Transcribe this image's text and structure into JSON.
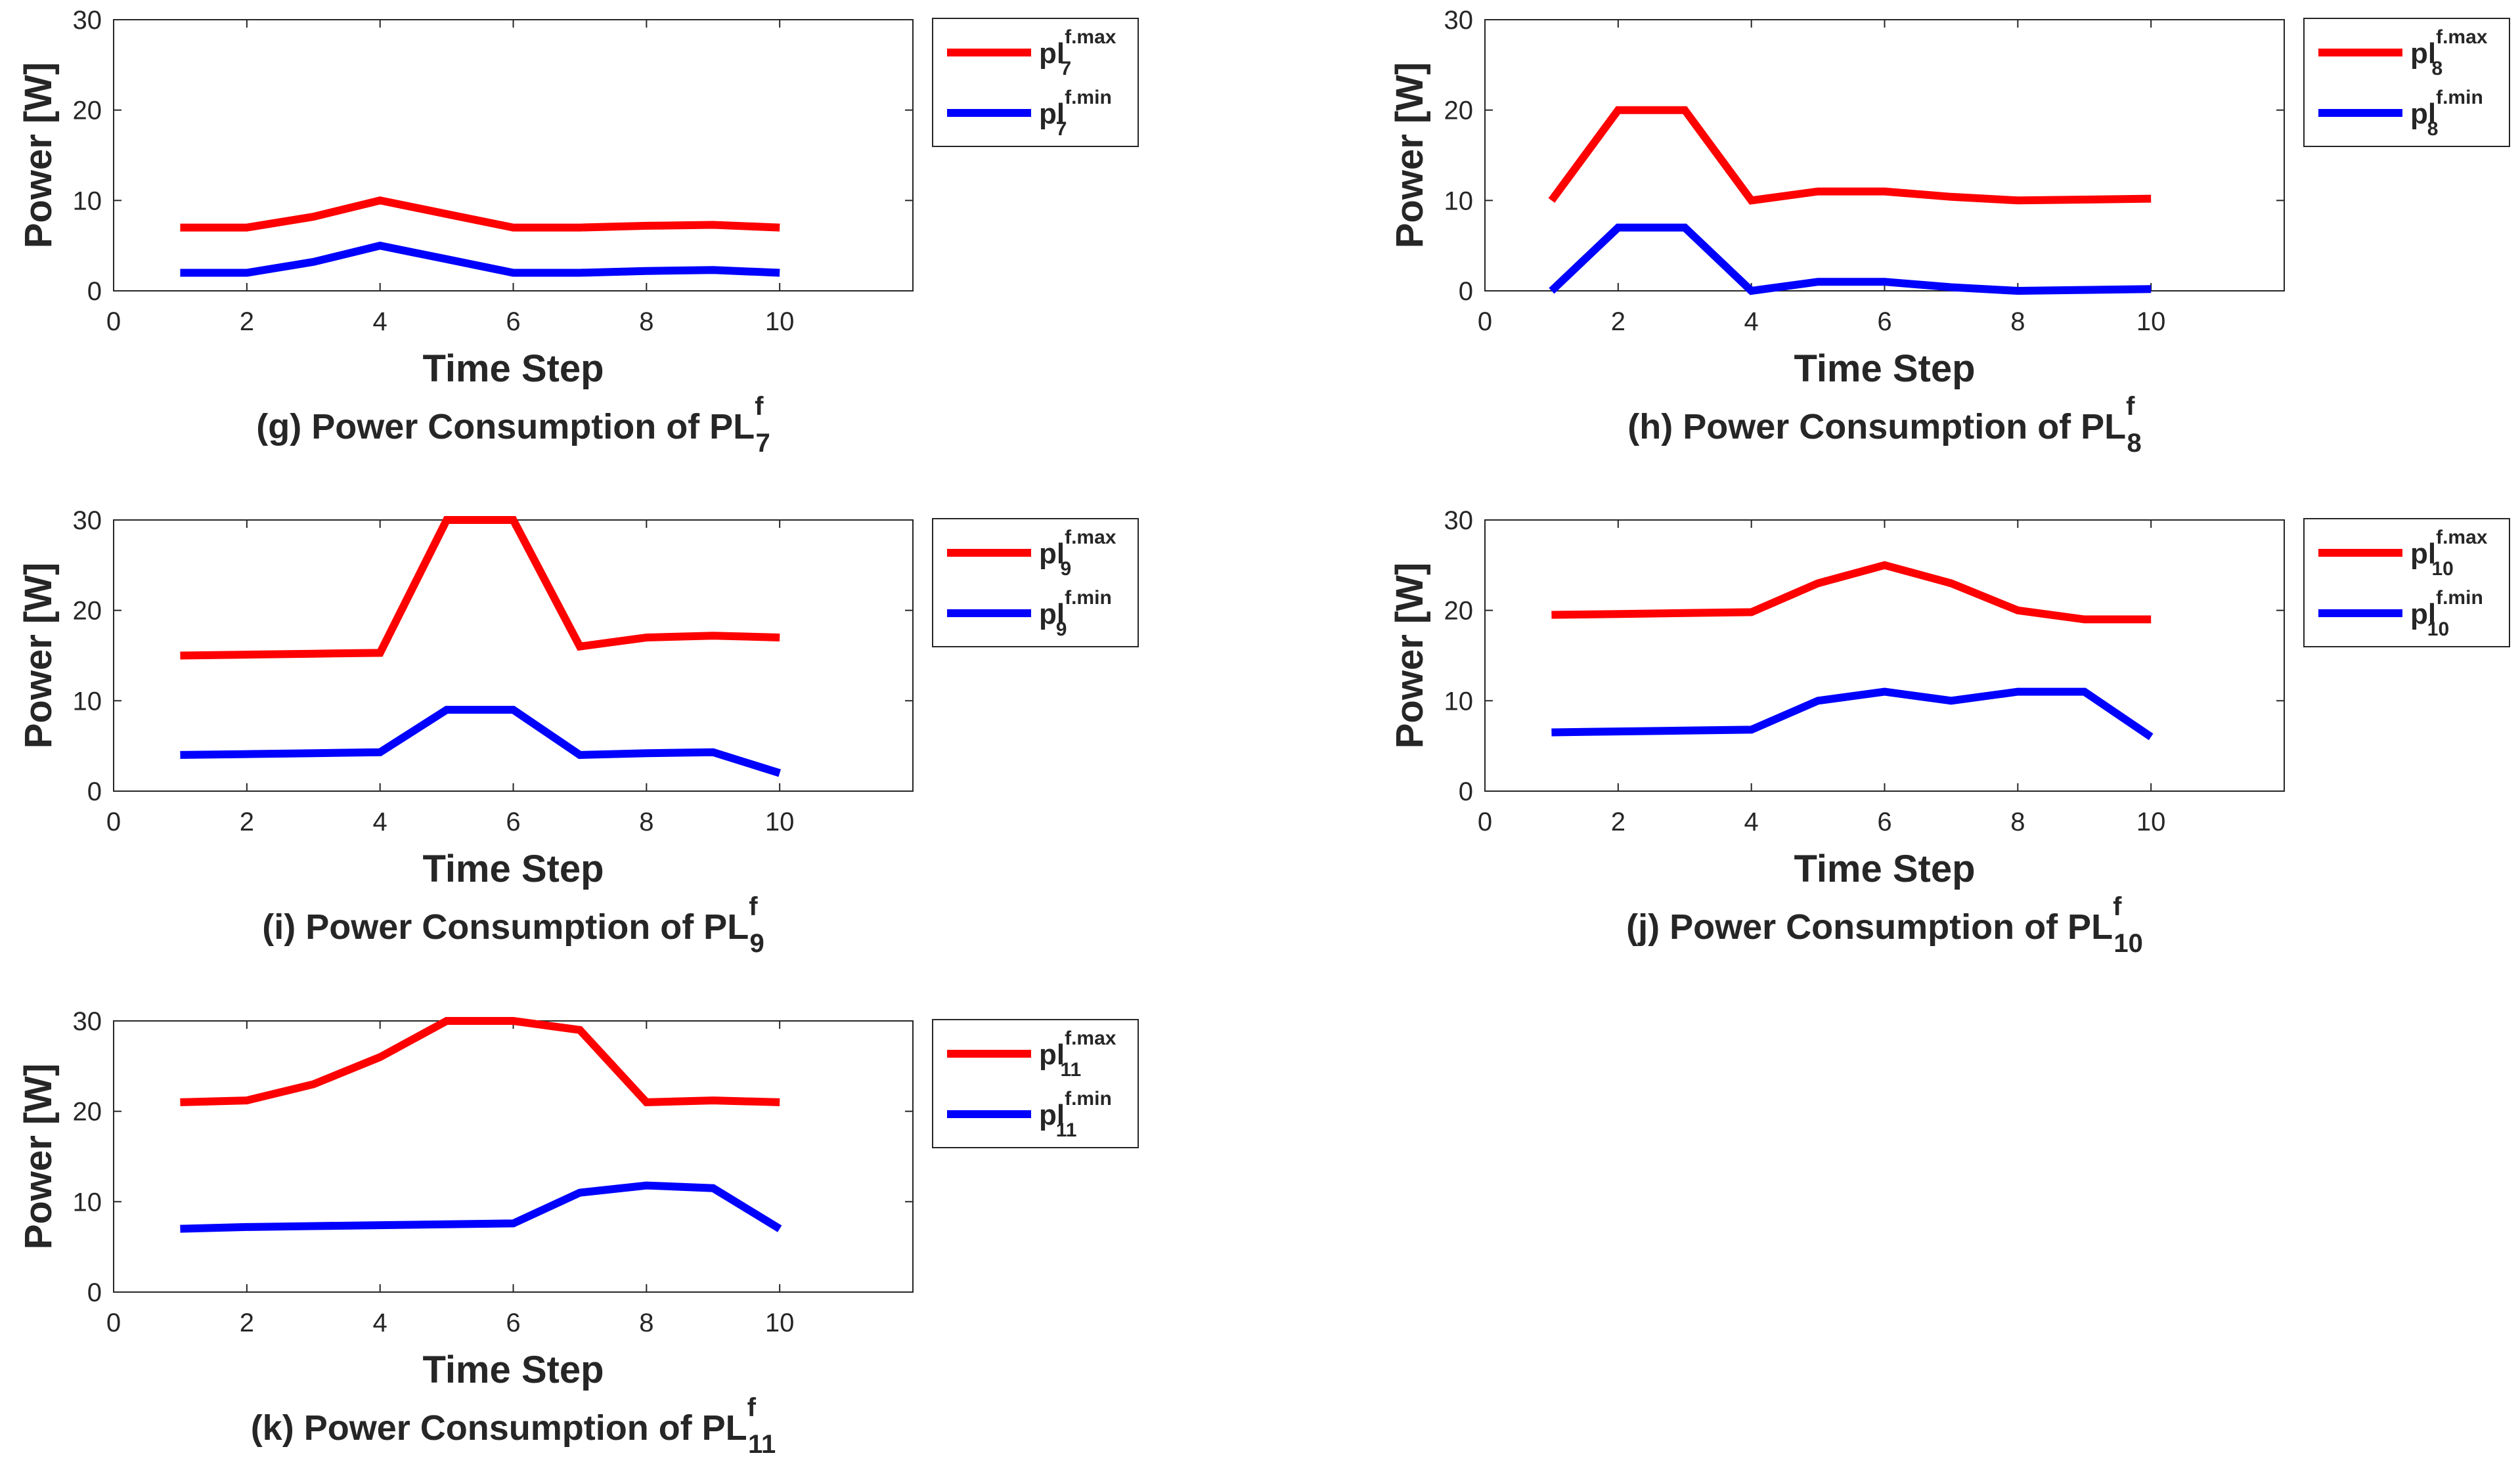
{
  "chart_data": [
    {
      "type": "line",
      "panel": "g",
      "caption": {
        "prefix": "(g) Power Consumption of PL",
        "sup": "f",
        "sub": "7"
      },
      "xlabel": "Time Step",
      "ylabel": "Power [W]",
      "xlim": [
        0,
        12
      ],
      "ylim": [
        0,
        30
      ],
      "xticks": [
        0,
        2,
        4,
        6,
        8,
        10
      ],
      "yticks": [
        0,
        10,
        20,
        30
      ],
      "x": [
        1,
        2,
        3,
        4,
        5,
        6,
        7,
        8,
        9,
        10
      ],
      "series": [
        {
          "name": "pl^{f.max}_7",
          "base": "pl",
          "sup": "f.max",
          "sub": "7",
          "color": "#ff0000",
          "values": [
            7,
            7,
            8.2,
            10,
            8.5,
            7,
            7,
            7.2,
            7.3,
            7
          ]
        },
        {
          "name": "pl^{f.min}_7",
          "base": "pl",
          "sup": "f.min",
          "sub": "7",
          "color": "#0000ff",
          "values": [
            2,
            2,
            3.2,
            5,
            3.5,
            2,
            2,
            2.2,
            2.3,
            2
          ]
        }
      ],
      "legend": "outside-right-top"
    },
    {
      "type": "line",
      "panel": "h",
      "caption": {
        "prefix": "(h) Power Consumption of PL",
        "sup": "f",
        "sub": "8"
      },
      "xlabel": "Time Step",
      "ylabel": "Power [W]",
      "xlim": [
        0,
        12
      ],
      "ylim": [
        0,
        30
      ],
      "xticks": [
        0,
        2,
        4,
        6,
        8,
        10
      ],
      "yticks": [
        0,
        10,
        20,
        30
      ],
      "x": [
        1,
        2,
        3,
        4,
        5,
        6,
        7,
        8,
        9,
        10
      ],
      "series": [
        {
          "name": "pl^{f.max}_8",
          "base": "pl",
          "sup": "f.max",
          "sub": "8",
          "color": "#ff0000",
          "values": [
            10,
            20,
            20,
            10,
            11,
            11,
            10.4,
            10,
            10.1,
            10.2
          ]
        },
        {
          "name": "pl^{f.min}_8",
          "base": "pl",
          "sup": "f.min",
          "sub": "8",
          "color": "#0000ff",
          "values": [
            0,
            7,
            7,
            0,
            1,
            1,
            0.4,
            0,
            0.1,
            0.2
          ]
        }
      ],
      "legend": "outside-right-top"
    },
    {
      "type": "line",
      "panel": "i",
      "caption": {
        "prefix": "(i) Power Consumption of PL",
        "sup": "f",
        "sub": "9"
      },
      "xlabel": "Time Step",
      "ylabel": "Power [W]",
      "xlim": [
        0,
        12
      ],
      "ylim": [
        0,
        30
      ],
      "xticks": [
        0,
        2,
        4,
        6,
        8,
        10
      ],
      "yticks": [
        0,
        10,
        20,
        30
      ],
      "x": [
        1,
        2,
        3,
        4,
        5,
        6,
        7,
        8,
        9,
        10
      ],
      "series": [
        {
          "name": "pl^{f.max}_9",
          "base": "pl",
          "sup": "f.max",
          "sub": "9",
          "color": "#ff0000",
          "values": [
            15,
            15.1,
            15.2,
            15.3,
            30,
            30,
            16,
            17,
            17.2,
            17
          ]
        },
        {
          "name": "pl^{f.min}_9",
          "base": "pl",
          "sup": "f.min",
          "sub": "9",
          "color": "#0000ff",
          "values": [
            4,
            4.1,
            4.2,
            4.3,
            9,
            9,
            4,
            4.2,
            4.3,
            2
          ]
        }
      ],
      "legend": "outside-right-top"
    },
    {
      "type": "line",
      "panel": "j",
      "caption": {
        "prefix": "(j) Power Consumption of PL",
        "sup": "f",
        "sub": "10"
      },
      "xlabel": "Time Step",
      "ylabel": "Power [W]",
      "xlim": [
        0,
        12
      ],
      "ylim": [
        0,
        30
      ],
      "xticks": [
        0,
        2,
        4,
        6,
        8,
        10
      ],
      "yticks": [
        0,
        10,
        20,
        30
      ],
      "x": [
        1,
        2,
        3,
        4,
        5,
        6,
        7,
        8,
        9,
        10
      ],
      "series": [
        {
          "name": "pl^{f.max}_10",
          "base": "pl",
          "sup": "f.max",
          "sub": "10",
          "color": "#ff0000",
          "values": [
            19.5,
            19.6,
            19.7,
            19.8,
            23,
            25,
            23,
            20,
            19,
            19
          ]
        },
        {
          "name": "pl^{f.min}_10",
          "base": "pl",
          "sup": "f.min",
          "sub": "10",
          "color": "#0000ff",
          "values": [
            6.5,
            6.6,
            6.7,
            6.8,
            10,
            11,
            10,
            11,
            11,
            6
          ]
        }
      ],
      "legend": "outside-right-top"
    },
    {
      "type": "line",
      "panel": "k",
      "caption": {
        "prefix": "(k) Power Consumption of PL",
        "sup": "f",
        "sub": "11"
      },
      "xlabel": "Time Step",
      "ylabel": "Power [W]",
      "xlim": [
        0,
        12
      ],
      "ylim": [
        0,
        30
      ],
      "xticks": [
        0,
        2,
        4,
        6,
        8,
        10
      ],
      "yticks": [
        0,
        10,
        20,
        30
      ],
      "x": [
        1,
        2,
        3,
        4,
        5,
        6,
        7,
        8,
        9,
        10
      ],
      "series": [
        {
          "name": "pl^{f.max}_11",
          "base": "pl",
          "sup": "f.max",
          "sub": "11",
          "color": "#ff0000",
          "values": [
            21,
            21.2,
            23,
            26,
            30,
            30,
            29,
            21,
            21.2,
            21
          ]
        },
        {
          "name": "pl^{f.min}_11",
          "base": "pl",
          "sup": "f.min",
          "sub": "11",
          "color": "#0000ff",
          "values": [
            7,
            7.2,
            7.3,
            7.4,
            7.5,
            7.6,
            11,
            11.8,
            11.5,
            7
          ]
        }
      ],
      "legend": "outside-right-top"
    }
  ]
}
